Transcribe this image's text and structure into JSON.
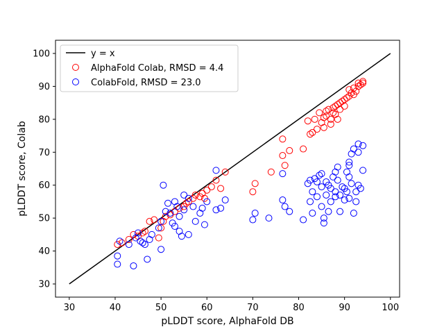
{
  "chart_data": {
    "type": "scatter",
    "title": "",
    "xlabel": "pLDDT score, AlphaFold DB",
    "ylabel": "pLDDT score, Colab",
    "xlim": [
      27,
      102
    ],
    "ylim": [
      26,
      104
    ],
    "xticks": [
      30,
      40,
      50,
      60,
      70,
      80,
      90,
      100
    ],
    "yticks": [
      30,
      40,
      50,
      60,
      70,
      80,
      90,
      100
    ],
    "grid": false,
    "legend_position": "upper-left",
    "reference_line": {
      "name": "y = x",
      "color": "#000000",
      "x": [
        30,
        100
      ],
      "y": [
        30,
        100
      ]
    },
    "series": [
      {
        "name": "AlphaFold Colab, RMSD = 4.4",
        "color": "#ff0000",
        "marker": "open-circle",
        "points": [
          [
            40.5,
            42.0
          ],
          [
            41.5,
            42.5
          ],
          [
            43.0,
            43.5
          ],
          [
            44.0,
            45.0
          ],
          [
            45.0,
            44.5
          ],
          [
            46.0,
            45.5
          ],
          [
            46.5,
            46.0
          ],
          [
            47.5,
            49.0
          ],
          [
            48.5,
            49.5
          ],
          [
            49.5,
            44.0
          ],
          [
            50.0,
            47.0
          ],
          [
            50.5,
            49.0
          ],
          [
            51.0,
            50.5
          ],
          [
            52.0,
            51.0
          ],
          [
            53.0,
            52.0
          ],
          [
            54.0,
            53.0
          ],
          [
            55.0,
            53.5
          ],
          [
            55.5,
            54.5
          ],
          [
            56.0,
            55.0
          ],
          [
            57.0,
            56.0
          ],
          [
            57.5,
            57.0
          ],
          [
            58.5,
            56.5
          ],
          [
            59.0,
            57.5
          ],
          [
            59.5,
            56.0
          ],
          [
            60.0,
            58.5
          ],
          [
            61.0,
            59.5
          ],
          [
            62.0,
            61.5
          ],
          [
            63.0,
            59.0
          ],
          [
            64.0,
            64.0
          ],
          [
            70.0,
            58.0
          ],
          [
            70.5,
            60.5
          ],
          [
            74.0,
            64.0
          ],
          [
            77.0,
            66.0
          ],
          [
            76.5,
            69.0
          ],
          [
            76.5,
            74.0
          ],
          [
            78.0,
            70.5
          ],
          [
            81.0,
            71.0
          ],
          [
            82.0,
            79.5
          ],
          [
            82.5,
            75.5
          ],
          [
            83.0,
            76.0
          ],
          [
            83.5,
            80.0
          ],
          [
            84.0,
            77.0
          ],
          [
            84.5,
            82.0
          ],
          [
            85.0,
            79.0
          ],
          [
            85.5,
            80.5
          ],
          [
            85.5,
            77.5
          ],
          [
            86.0,
            82.5
          ],
          [
            86.0,
            81.0
          ],
          [
            86.5,
            83.0
          ],
          [
            87.0,
            80.0
          ],
          [
            87.0,
            78.5
          ],
          [
            87.5,
            82.0
          ],
          [
            87.5,
            83.5
          ],
          [
            88.0,
            84.0
          ],
          [
            88.0,
            81.5
          ],
          [
            88.5,
            84.5
          ],
          [
            88.5,
            80.0
          ],
          [
            89.0,
            85.0
          ],
          [
            89.0,
            83.0
          ],
          [
            89.5,
            85.5
          ],
          [
            90.0,
            84.0
          ],
          [
            90.0,
            86.0
          ],
          [
            90.5,
            86.5
          ],
          [
            91.0,
            87.0
          ],
          [
            91.0,
            89.0
          ],
          [
            91.5,
            88.0
          ],
          [
            92.0,
            87.5
          ],
          [
            92.0,
            89.5
          ],
          [
            92.5,
            88.5
          ],
          [
            93.0,
            90.0
          ],
          [
            93.0,
            91.0
          ],
          [
            93.5,
            90.5
          ],
          [
            94.0,
            91.5
          ],
          [
            94.0,
            91.0
          ]
        ]
      },
      {
        "name": "ColabFold, RMSD = 23.0",
        "color": "#0000ff",
        "marker": "open-circle",
        "points": [
          [
            40.5,
            38.5
          ],
          [
            40.5,
            36.0
          ],
          [
            41.0,
            43.0
          ],
          [
            43.0,
            42.0
          ],
          [
            44.0,
            35.5
          ],
          [
            44.5,
            44.0
          ],
          [
            45.0,
            45.5
          ],
          [
            45.5,
            43.0
          ],
          [
            46.0,
            42.5
          ],
          [
            46.5,
            42.0
          ],
          [
            47.0,
            37.5
          ],
          [
            47.5,
            43.5
          ],
          [
            48.0,
            45.0
          ],
          [
            49.5,
            47.0
          ],
          [
            50.0,
            40.5
          ],
          [
            50.0,
            49.0
          ],
          [
            50.5,
            60.0
          ],
          [
            51.0,
            52.0
          ],
          [
            51.5,
            54.5
          ],
          [
            52.0,
            51.5
          ],
          [
            52.5,
            48.5
          ],
          [
            53.0,
            55.0
          ],
          [
            53.0,
            47.5
          ],
          [
            53.5,
            53.5
          ],
          [
            54.0,
            50.5
          ],
          [
            54.0,
            46.0
          ],
          [
            54.5,
            44.5
          ],
          [
            55.0,
            52.5
          ],
          [
            55.0,
            57.0
          ],
          [
            56.0,
            45.0
          ],
          [
            56.0,
            56.0
          ],
          [
            57.0,
            53.5
          ],
          [
            57.5,
            49.0
          ],
          [
            58.5,
            51.5
          ],
          [
            59.0,
            53.0
          ],
          [
            59.5,
            48.0
          ],
          [
            60.0,
            55.0
          ],
          [
            62.0,
            64.5
          ],
          [
            62.0,
            52.5
          ],
          [
            63.0,
            53.0
          ],
          [
            64.0,
            55.5
          ],
          [
            70.0,
            49.5
          ],
          [
            70.5,
            51.5
          ],
          [
            73.5,
            50.0
          ],
          [
            76.5,
            63.5
          ],
          [
            76.5,
            55.5
          ],
          [
            77.0,
            53.5
          ],
          [
            78.0,
            52.0
          ],
          [
            81.0,
            49.5
          ],
          [
            82.0,
            60.5
          ],
          [
            82.5,
            61.5
          ],
          [
            82.5,
            55.0
          ],
          [
            83.0,
            51.5
          ],
          [
            83.5,
            62.0
          ],
          [
            84.0,
            56.5
          ],
          [
            84.5,
            63.0
          ],
          [
            85.0,
            59.5
          ],
          [
            85.0,
            53.5
          ],
          [
            85.5,
            50.0
          ],
          [
            85.5,
            48.5
          ],
          [
            86.0,
            57.0
          ],
          [
            86.0,
            61.0
          ],
          [
            86.5,
            60.0
          ],
          [
            86.5,
            52.0
          ],
          [
            87.0,
            59.0
          ],
          [
            87.0,
            55.0
          ],
          [
            87.5,
            62.5
          ],
          [
            88.0,
            56.5
          ],
          [
            88.0,
            58.0
          ],
          [
            88.5,
            61.5
          ],
          [
            88.5,
            65.5
          ],
          [
            89.0,
            52.0
          ],
          [
            89.0,
            57.0
          ],
          [
            89.5,
            59.5
          ],
          [
            90.0,
            55.5
          ],
          [
            90.5,
            64.0
          ],
          [
            90.5,
            58.0
          ],
          [
            91.0,
            67.0
          ],
          [
            91.0,
            62.5
          ],
          [
            91.0,
            56.0
          ],
          [
            91.5,
            60.5
          ],
          [
            91.5,
            69.5
          ],
          [
            92.0,
            71.0
          ],
          [
            92.0,
            51.5
          ],
          [
            92.5,
            58.0
          ],
          [
            92.5,
            55.0
          ],
          [
            93.0,
            60.0
          ],
          [
            93.0,
            72.5
          ],
          [
            93.0,
            70.0
          ],
          [
            93.5,
            59.0
          ],
          [
            94.0,
            64.5
          ],
          [
            94.0,
            72.0
          ],
          [
            85.0,
            63.5
          ],
          [
            83.0,
            58.0
          ],
          [
            84.0,
            61.0
          ],
          [
            90.0,
            59.0
          ],
          [
            91.0,
            66.0
          ],
          [
            88.0,
            64.0
          ]
        ]
      }
    ]
  }
}
